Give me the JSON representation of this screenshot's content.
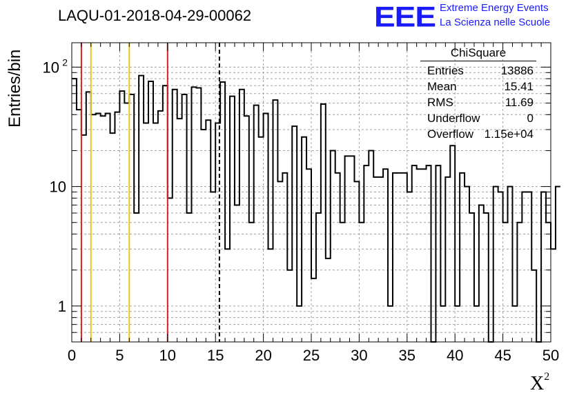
{
  "title": "LAQU-01-2018-04-29-00062",
  "logo": {
    "mark": "EEE",
    "line1": "Extreme Energy Events",
    "line2": "La Scienza nelle Scuole"
  },
  "stats": {
    "title": "ChiSquare",
    "rows": [
      {
        "key": "Entries",
        "value": "13886"
      },
      {
        "key": "Mean",
        "value": "15.41"
      },
      {
        "key": "RMS",
        "value": "11.69"
      },
      {
        "key": "Underflow",
        "value": "0"
      },
      {
        "key": "Overflow",
        "value": "1.15e+04"
      }
    ]
  },
  "colors": {
    "red": "#d42020",
    "yellow": "#f0c020",
    "grid": "#a0a0a0"
  },
  "chart_data": {
    "type": "bar",
    "ylabel": "Entries/bin",
    "xlabel": "X",
    "xlabel_sup": "2",
    "xlim": [
      0,
      50
    ],
    "ylim": [
      0.5,
      160
    ],
    "y_scale": "log",
    "grid": true,
    "bin_width": 0.5,
    "x_tick_labels": [
      "0",
      "5",
      "10",
      "15",
      "20",
      "25",
      "30",
      "35",
      "40",
      "45",
      "50"
    ],
    "y_tick_labels": [
      {
        "value": 1,
        "label": "1"
      },
      {
        "value": 10,
        "label": "10"
      },
      {
        "value": 100,
        "label": "10",
        "sup": "2"
      }
    ],
    "vertical_lines": [
      {
        "x": 1,
        "color": "red",
        "style": "solid"
      },
      {
        "x": 2,
        "color": "yellow",
        "style": "solid"
      },
      {
        "x": 6,
        "color": "yellow",
        "style": "solid"
      },
      {
        "x": 10,
        "color": "red",
        "style": "solid"
      },
      {
        "x": 15.41,
        "color": "black",
        "style": "dashed"
      }
    ],
    "values": [
      80,
      44,
      27,
      62,
      40,
      41,
      39,
      41,
      28,
      42,
      63,
      50,
      59,
      6,
      85,
      34,
      76,
      34,
      43,
      70,
      8,
      65,
      37,
      59,
      6,
      68,
      67,
      30,
      36,
      9,
      34,
      75,
      3,
      57,
      7,
      65,
      39,
      5,
      48,
      26,
      41,
      3,
      53,
      11,
      13,
      2,
      32,
      1,
      26,
      14,
      1.7,
      6,
      49,
      2.5,
      20,
      13,
      5,
      18,
      18,
      11,
      5,
      15,
      20,
      12,
      12,
      14,
      1,
      13,
      13,
      13,
      9,
      15,
      14,
      14,
      15,
      0.3,
      15,
      1,
      12,
      22,
      1,
      13,
      10,
      6,
      1,
      7,
      6,
      0.3,
      10,
      9,
      5,
      10,
      1,
      5,
      9,
      9,
      2,
      0.3,
      9,
      5,
      3,
      10
    ]
  }
}
